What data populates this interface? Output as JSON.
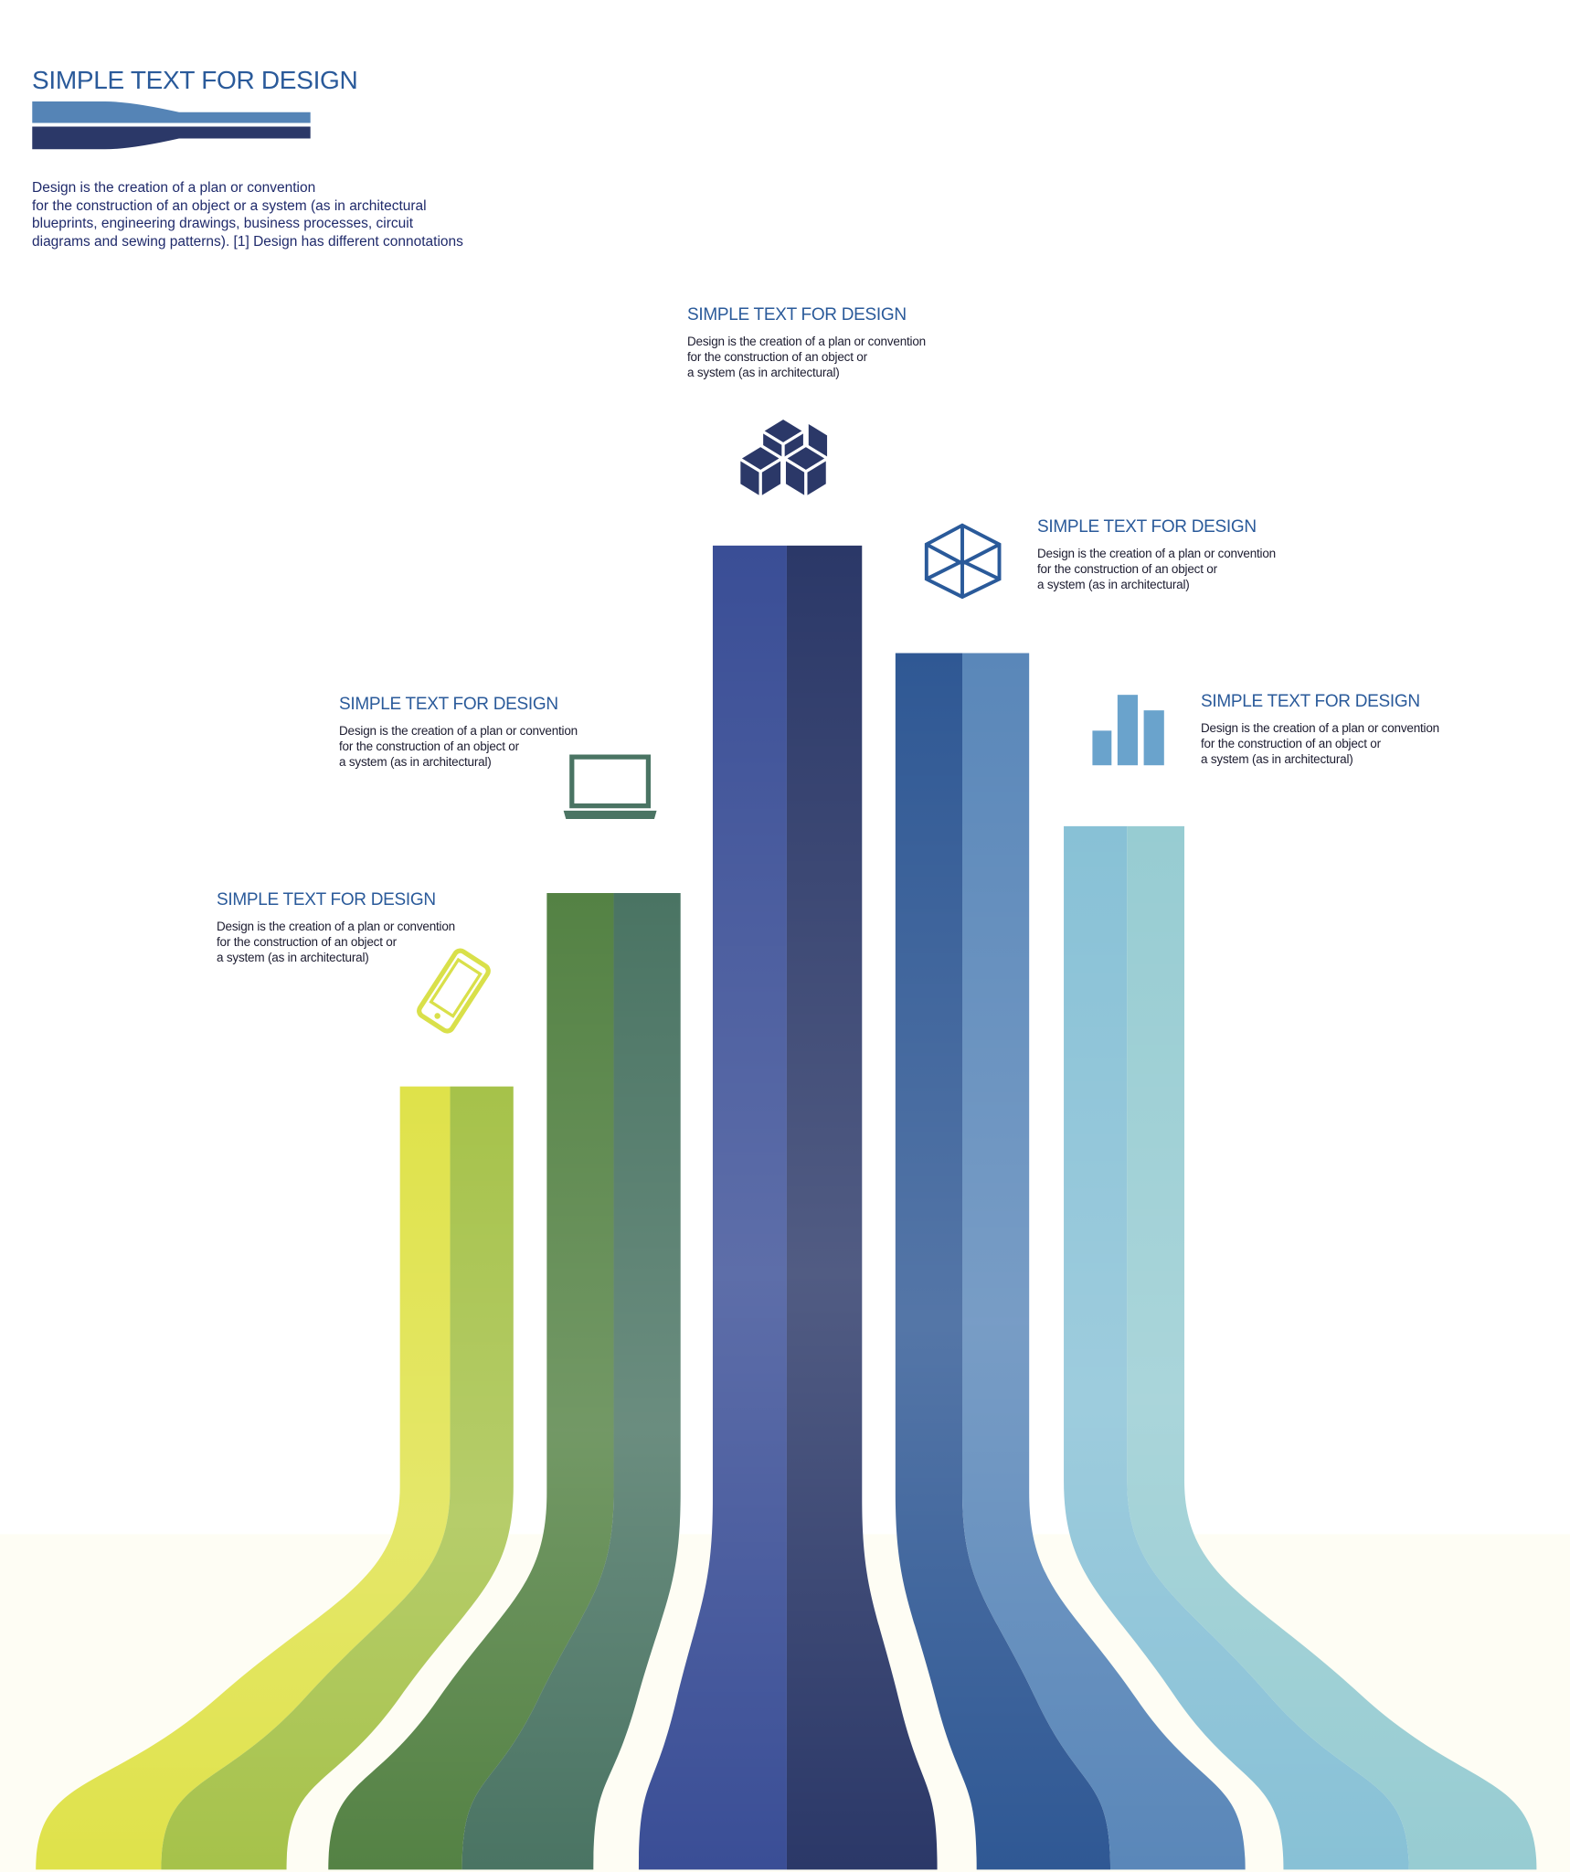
{
  "header": {
    "title": "SIMPLE TEXT FOR DESIGN",
    "description": [
      "Design is the creation of a plan or convention",
      "for the construction of an object or a system (as in architectural",
      "blueprints, engineering drawings, business processes, circuit",
      "diagrams and sewing patterns). [1] Design has different connotations"
    ]
  },
  "steps": [
    {
      "title": "SIMPLE TEXT FOR DESIGN",
      "icon": "smartphone-icon",
      "description": [
        "Design is the creation of a plan or convention",
        "for the construction of an object or",
        "a system (as in architectural)"
      ]
    },
    {
      "title": "SIMPLE TEXT FOR DESIGN",
      "icon": "laptop-icon",
      "description": [
        "Design is the creation of a plan or convention",
        "for the construction of an object or",
        "a system (as in architectural)"
      ]
    },
    {
      "title": "SIMPLE TEXT FOR DESIGN",
      "icon": "cubes-icon",
      "description": [
        "Design is the creation of a plan or convention",
        "for the construction of an object or",
        "a system (as in architectural)"
      ]
    },
    {
      "title": "SIMPLE TEXT FOR DESIGN",
      "icon": "cube-outline-icon",
      "description": [
        "Design is the creation of a plan or convention",
        "for the construction of an object or",
        "a system (as in architectural)"
      ]
    },
    {
      "title": "SIMPLE TEXT FOR DESIGN",
      "icon": "bar-chart-icon",
      "description": [
        "Design is the creation of a plan or convention",
        "for the construction of an object or",
        "a system (as in architectural)"
      ]
    }
  ],
  "colors": {
    "title": "#2a5a9a",
    "ribbon_yellow": [
      "#dfe24a",
      "#a6c24a"
    ],
    "ribbon_green": [
      "#548244",
      "#4a7463"
    ],
    "ribbon_navy": [
      "#3a4e96",
      "#2b3868"
    ],
    "ribbon_blue": [
      "#2f5894",
      "#5a87b9"
    ],
    "ribbon_lightblue": [
      "#88c1d6",
      "#97ccd2"
    ]
  }
}
